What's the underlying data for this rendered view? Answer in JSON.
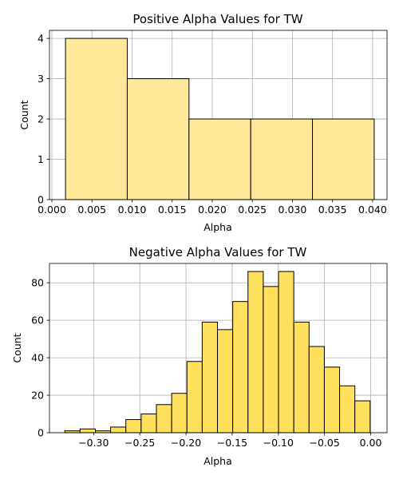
{
  "chart_data": [
    {
      "type": "bar",
      "title": "Positive Alpha Values for TW",
      "xlabel": "Alpha",
      "ylabel": "Count",
      "xlim": [
        -0.0003,
        0.0418
      ],
      "ylim": [
        0,
        4.2
      ],
      "xticks": [
        0.0,
        0.005,
        0.01,
        0.015,
        0.02,
        0.025,
        0.03,
        0.035,
        0.04
      ],
      "xtick_labels": [
        "0.000",
        "0.005",
        "0.010",
        "0.015",
        "0.020",
        "0.025",
        "0.030",
        "0.035",
        "0.040"
      ],
      "yticks": [
        0,
        1,
        2,
        3,
        4
      ],
      "ytick_labels": [
        "0",
        "1",
        "2",
        "3",
        "4"
      ],
      "grid": true,
      "bar_color": "#ffe999",
      "edge_color": "#000000",
      "bins": [
        {
          "x0": 0.0017,
          "x1": 0.0094,
          "count": 4
        },
        {
          "x0": 0.0094,
          "x1": 0.0171,
          "count": 3
        },
        {
          "x0": 0.0171,
          "x1": 0.0248,
          "count": 2
        },
        {
          "x0": 0.0248,
          "x1": 0.0325,
          "count": 2
        },
        {
          "x0": 0.0325,
          "x1": 0.0402,
          "count": 2
        }
      ]
    },
    {
      "type": "bar",
      "title": "Negative Alpha Values for TW",
      "xlabel": "Alpha",
      "ylabel": "Count",
      "xlim": [
        -0.3478,
        0.0177
      ],
      "ylim": [
        0,
        90.3
      ],
      "xticks": [
        -0.3,
        -0.25,
        -0.2,
        -0.15,
        -0.1,
        -0.05,
        0.0
      ],
      "xtick_labels": [
        "−0.30",
        "−0.25",
        "−0.20",
        "−0.15",
        "−0.10",
        "−0.05",
        "0.00"
      ],
      "yticks": [
        0,
        20,
        40,
        60,
        80
      ],
      "ytick_labels": [
        "0",
        "20",
        "40",
        "60",
        "80"
      ],
      "grid": true,
      "bar_color": "#ffe05c",
      "edge_color": "#000000",
      "bin_start": -0.3312,
      "bin_width": 0.01653,
      "counts": [
        1,
        2,
        1,
        3,
        7,
        10,
        15,
        21,
        38,
        59,
        55,
        70,
        86,
        78,
        86,
        59,
        46,
        35,
        25,
        17
      ]
    }
  ]
}
